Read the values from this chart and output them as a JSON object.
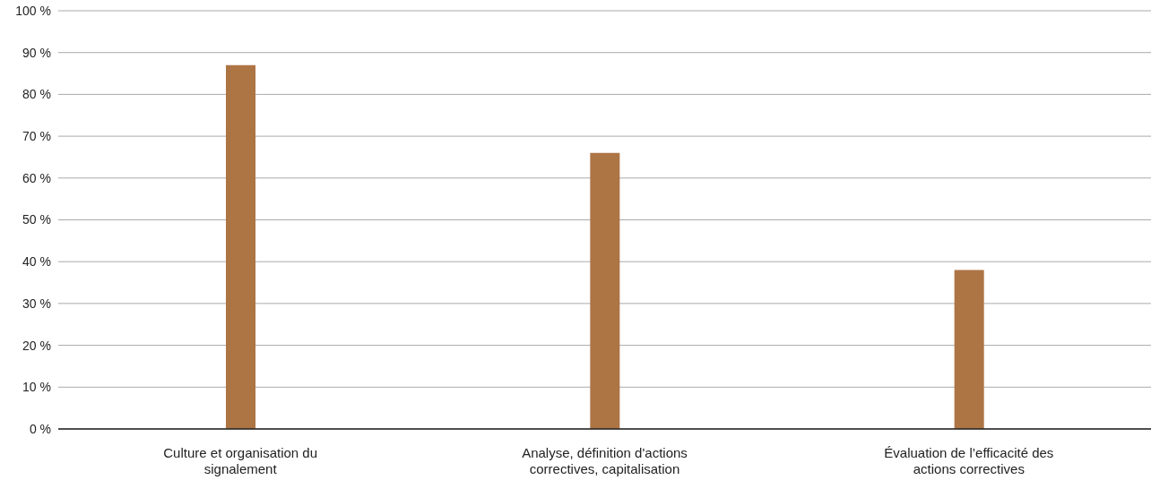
{
  "chart_data": {
    "type": "bar",
    "categories": [
      "Culture et organisation du signalement",
      "Analyse, définition d'actions correctives, capitalisation",
      "Évaluation de l’efficacité des actions correctives"
    ],
    "values": [
      87,
      66,
      38
    ],
    "color": "#ad7444",
    "ylim": [
      0,
      100
    ],
    "yticks": [
      {
        "value": 0,
        "label": "0 %"
      },
      {
        "value": 10,
        "label": "10 %"
      },
      {
        "value": 20,
        "label": "20 %"
      },
      {
        "value": 30,
        "label": "30 %"
      },
      {
        "value": 40,
        "label": "40 %"
      },
      {
        "value": 50,
        "label": "50 %"
      },
      {
        "value": 60,
        "label": "60 %"
      },
      {
        "value": 70,
        "label": "70 %"
      },
      {
        "value": 80,
        "label": "80 %"
      },
      {
        "value": 90,
        "label": "90 %"
      },
      {
        "value": 100,
        "label": "100 %"
      }
    ],
    "grid": "y"
  }
}
